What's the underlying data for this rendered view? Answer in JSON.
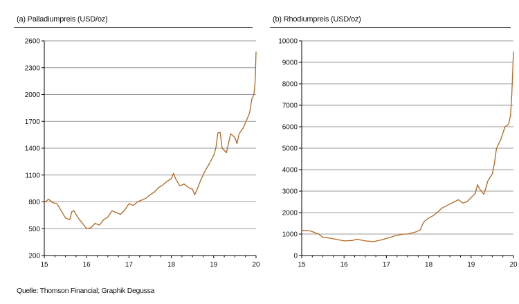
{
  "source_note": "Quelle: Thomson Financial; Graphik Degussa",
  "colors": {
    "line": "#b5651d",
    "grid": "#999999",
    "axis": "#000000"
  },
  "chart_data": [
    {
      "type": "line",
      "title": "(a) Palladiumpreis (USD/oz)",
      "xlim": [
        15,
        20
      ],
      "x_ticks": [
        15,
        16,
        17,
        18,
        19,
        20
      ],
      "ylim": [
        200,
        2600
      ],
      "y_ticks": [
        200,
        500,
        800,
        1100,
        1400,
        1700,
        2000,
        2300,
        2600
      ],
      "grid": true,
      "series": [
        {
          "values": [
            [
              15.0,
              790
            ],
            [
              15.1,
              830
            ],
            [
              15.2,
              790
            ],
            [
              15.3,
              780
            ],
            [
              15.4,
              700
            ],
            [
              15.5,
              620
            ],
            [
              15.6,
              600
            ],
            [
              15.65,
              690
            ],
            [
              15.7,
              700
            ],
            [
              15.8,
              620
            ],
            [
              15.9,
              560
            ],
            [
              16.0,
              500
            ],
            [
              16.1,
              510
            ],
            [
              16.2,
              560
            ],
            [
              16.3,
              540
            ],
            [
              16.4,
              600
            ],
            [
              16.5,
              630
            ],
            [
              16.6,
              700
            ],
            [
              16.7,
              680
            ],
            [
              16.8,
              660
            ],
            [
              16.9,
              710
            ],
            [
              17.0,
              780
            ],
            [
              17.1,
              760
            ],
            [
              17.2,
              800
            ],
            [
              17.3,
              820
            ],
            [
              17.4,
              840
            ],
            [
              17.5,
              880
            ],
            [
              17.6,
              910
            ],
            [
              17.7,
              960
            ],
            [
              17.8,
              990
            ],
            [
              17.9,
              1030
            ],
            [
              18.0,
              1060
            ],
            [
              18.05,
              1120
            ],
            [
              18.1,
              1060
            ],
            [
              18.2,
              980
            ],
            [
              18.3,
              1000
            ],
            [
              18.4,
              960
            ],
            [
              18.5,
              940
            ],
            [
              18.55,
              880
            ],
            [
              18.6,
              930
            ],
            [
              18.7,
              1050
            ],
            [
              18.8,
              1150
            ],
            [
              18.9,
              1230
            ],
            [
              19.0,
              1320
            ],
            [
              19.05,
              1400
            ],
            [
              19.1,
              1570
            ],
            [
              19.15,
              1580
            ],
            [
              19.2,
              1400
            ],
            [
              19.3,
              1350
            ],
            [
              19.4,
              1560
            ],
            [
              19.5,
              1520
            ],
            [
              19.55,
              1450
            ],
            [
              19.6,
              1560
            ],
            [
              19.7,
              1630
            ],
            [
              19.8,
              1740
            ],
            [
              19.85,
              1800
            ],
            [
              19.9,
              1950
            ],
            [
              19.95,
              2000
            ],
            [
              19.98,
              2150
            ],
            [
              20.0,
              2480
            ]
          ]
        }
      ]
    },
    {
      "type": "line",
      "title": "(b) Rhodiumpreis (USD/oz)",
      "xlim": [
        15,
        20
      ],
      "x_ticks": [
        15,
        16,
        17,
        18,
        19,
        20
      ],
      "ylim": [
        0,
        10000
      ],
      "y_ticks": [
        0,
        1000,
        2000,
        3000,
        4000,
        5000,
        6000,
        7000,
        8000,
        9000,
        10000
      ],
      "grid": true,
      "series": [
        {
          "values": [
            [
              15.0,
              1170
            ],
            [
              15.2,
              1150
            ],
            [
              15.4,
              1000
            ],
            [
              15.5,
              850
            ],
            [
              15.7,
              800
            ],
            [
              16.0,
              680
            ],
            [
              16.2,
              700
            ],
            [
              16.3,
              760
            ],
            [
              16.5,
              680
            ],
            [
              16.7,
              650
            ],
            [
              16.9,
              740
            ],
            [
              17.0,
              800
            ],
            [
              17.1,
              850
            ],
            [
              17.2,
              920
            ],
            [
              17.3,
              960
            ],
            [
              17.4,
              1000
            ],
            [
              17.5,
              1000
            ],
            [
              17.6,
              1050
            ],
            [
              17.7,
              1100
            ],
            [
              17.8,
              1200
            ],
            [
              17.85,
              1450
            ],
            [
              17.9,
              1600
            ],
            [
              18.0,
              1750
            ],
            [
              18.1,
              1850
            ],
            [
              18.2,
              2000
            ],
            [
              18.3,
              2200
            ],
            [
              18.4,
              2300
            ],
            [
              18.5,
              2400
            ],
            [
              18.6,
              2500
            ],
            [
              18.7,
              2600
            ],
            [
              18.8,
              2450
            ],
            [
              18.9,
              2500
            ],
            [
              19.0,
              2700
            ],
            [
              19.1,
              2900
            ],
            [
              19.15,
              3300
            ],
            [
              19.2,
              3100
            ],
            [
              19.3,
              2850
            ],
            [
              19.4,
              3500
            ],
            [
              19.5,
              3800
            ],
            [
              19.55,
              4300
            ],
            [
              19.6,
              5000
            ],
            [
              19.7,
              5400
            ],
            [
              19.8,
              6000
            ],
            [
              19.88,
              6100
            ],
            [
              19.93,
              6500
            ],
            [
              19.96,
              7500
            ],
            [
              19.98,
              8500
            ],
            [
              20.0,
              9500
            ]
          ]
        }
      ]
    }
  ]
}
